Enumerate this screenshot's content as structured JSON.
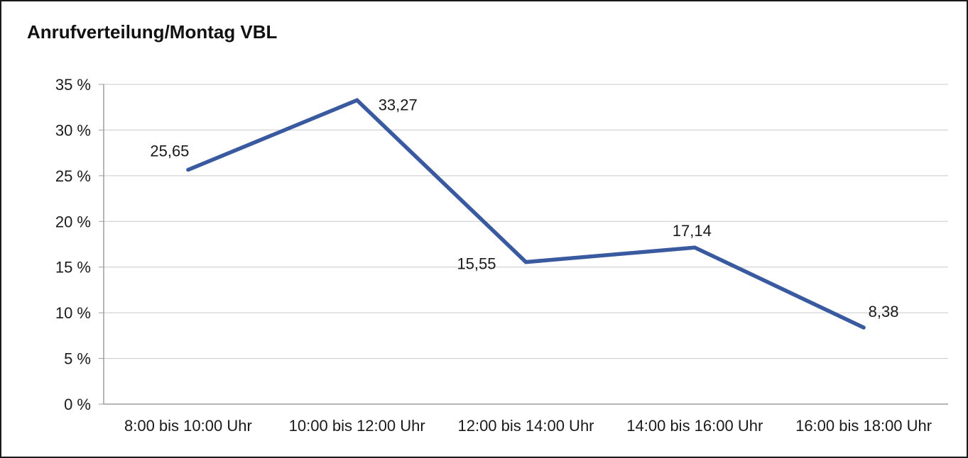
{
  "chart_data": {
    "type": "line",
    "title": "Anrufverteilung/Montag VBL",
    "categories": [
      "8:00 bis 10:00 Uhr",
      "10:00 bis 12:00 Uhr",
      "12:00 bis 14:00 Uhr",
      "14:00 bis 16:00 Uhr",
      "16:00 bis 18:00 Uhr"
    ],
    "values": [
      25.65,
      33.27,
      15.55,
      17.14,
      8.38
    ],
    "data_labels": [
      "25,65",
      "33,27",
      "15,55",
      "17,14",
      "8,38"
    ],
    "data_label_positions": [
      "above-left",
      "right",
      "left",
      "above",
      "above-right"
    ],
    "xlabel": "",
    "ylabel": "",
    "ylim": [
      0,
      35
    ],
    "ytick_values": [
      0,
      5,
      10,
      15,
      20,
      25,
      30,
      35
    ],
    "ytick_labels": [
      "0 %",
      "5 %",
      "10 %",
      "15 %",
      "20 %",
      "25 %",
      "30 %",
      "35 %"
    ],
    "grid": "horizontal",
    "legend": "none",
    "colors": {
      "line": "#3a5aa0",
      "grid": "#c9c9c9",
      "axis": "#9e9e9e",
      "text": "#1a1a1a"
    }
  }
}
